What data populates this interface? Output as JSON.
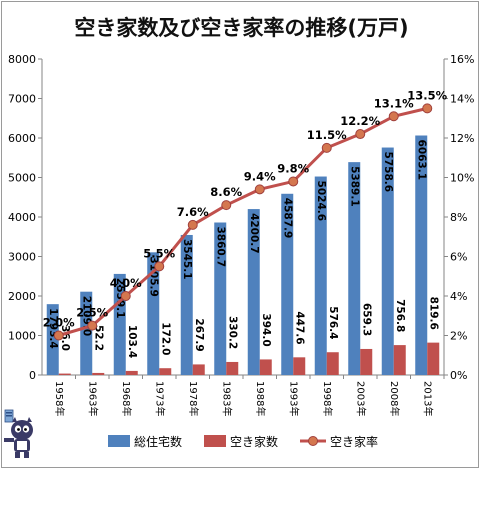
{
  "chart_data": {
    "type": "bar",
    "title": "空き家数及び空き家率の推移(万戸)",
    "categories": [
      "1958年",
      "1963年",
      "1968年",
      "1973年",
      "1978年",
      "1983年",
      "1988年",
      "1993年",
      "1998年",
      "2003年",
      "2008年",
      "2013年"
    ],
    "series": [
      {
        "name": "総住宅数",
        "type": "bar",
        "axis": "left",
        "color": "#4f81bd",
        "values": [
          1793.4,
          2109.0,
          2559.1,
          3105.9,
          3545.1,
          3860.7,
          4200.7,
          4587.9,
          5024.6,
          5389.1,
          5758.6,
          6063.1
        ],
        "labels": [
          "1793.4",
          "2109.0",
          "2559.1",
          "3105.9",
          "3545.1",
          "3860.7",
          "4200.7",
          "4587.9",
          "5024.6",
          "5389.1",
          "5758.6",
          "6063.1"
        ]
      },
      {
        "name": "空き家数",
        "type": "bar",
        "axis": "left",
        "color": "#c0504d",
        "values": [
          36.0,
          52.2,
          103.4,
          172.0,
          267.9,
          330.2,
          394.0,
          447.6,
          576.4,
          659.3,
          756.8,
          819.6
        ],
        "labels": [
          "36.0",
          "52.2",
          "103.4",
          "172.0",
          "267.9",
          "330.2",
          "394.0",
          "447.6",
          "576.4",
          "659.3",
          "756.8",
          "819.6"
        ]
      },
      {
        "name": "空き家率",
        "type": "line",
        "axis": "right",
        "color": "#c0504d",
        "values": [
          2.0,
          2.5,
          4.0,
          5.5,
          7.6,
          8.6,
          9.4,
          9.8,
          11.5,
          12.2,
          13.1,
          13.5
        ],
        "labels": [
          "2.0%",
          "2.5%",
          "4.0%",
          "5.5%",
          "7.6%",
          "8.6%",
          "9.4%",
          "9.8%",
          "11.5%",
          "12.2%",
          "13.1%",
          "13.5%"
        ]
      }
    ],
    "ylim": [
      0,
      8000
    ],
    "yticks": [
      "0",
      "1000",
      "2000",
      "3000",
      "4000",
      "5000",
      "6000",
      "7000",
      "8000"
    ],
    "y2lim": [
      0,
      16
    ],
    "y2ticks": [
      "0%",
      "2%",
      "4%",
      "6%",
      "8%",
      "10%",
      "12%",
      "14%",
      "16%"
    ],
    "legend_position": "bottom",
    "grid": false
  }
}
